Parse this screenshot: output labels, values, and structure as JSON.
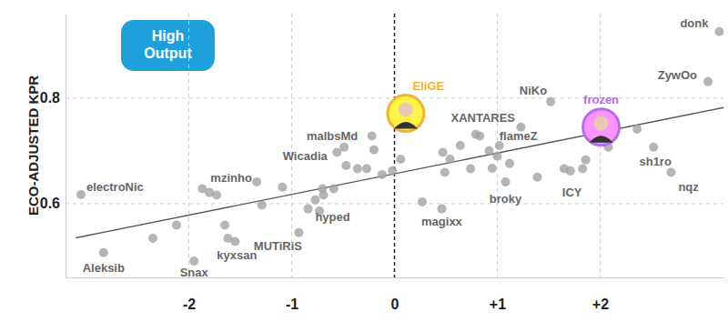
{
  "chart_data": {
    "type": "scatter",
    "y_label": "ECO-ADJUSTED KPR",
    "annotation": "High Output",
    "x": [
      3.16,
      3.05,
      1.52,
      2.01,
      0.11,
      0.79,
      1.02,
      2.52,
      2.69,
      1.71,
      1.08,
      0.46,
      -0.69,
      -0.93,
      -1.55,
      -1.95,
      -2.83,
      -3.05,
      -1.34,
      -0.56,
      -0.49,
      -1.87,
      -1.8,
      -1.73,
      -2.12,
      -2.35,
      -1.65,
      -1.62,
      -1.29,
      -1.09,
      -0.84,
      -0.77,
      -0.7,
      -0.59,
      -0.73,
      -0.47,
      -0.36,
      -0.27,
      -0.2,
      -0.12,
      -0.02,
      0.06,
      -0.22,
      0.47,
      0.49,
      0.54,
      0.64,
      0.74,
      0.83,
      0.92,
      0.95,
      1.0,
      1.12,
      1.23,
      1.39,
      1.65,
      1.83,
      1.86,
      2.08,
      2.36,
      0.27
    ],
    "values": [
      0.926,
      0.831,
      0.793,
      0.745,
      0.771,
      0.731,
      0.71,
      0.707,
      0.659,
      0.662,
      0.641,
      0.59,
      0.616,
      0.545,
      0.528,
      0.491,
      0.507,
      0.617,
      0.641,
      0.697,
      0.707,
      0.628,
      0.621,
      0.616,
      0.559,
      0.534,
      0.559,
      0.534,
      0.597,
      0.631,
      0.59,
      0.607,
      0.628,
      0.628,
      0.586,
      0.672,
      0.666,
      0.666,
      0.702,
      0.655,
      0.662,
      0.684,
      0.728,
      0.697,
      0.659,
      0.684,
      0.71,
      0.666,
      0.728,
      0.7,
      0.667,
      0.69,
      0.676,
      0.745,
      0.65,
      0.666,
      0.666,
      0.683,
      0.707,
      0.741,
      0.603
    ],
    "labels": [
      "donk",
      "ZywOo",
      "NiKo",
      "frozen",
      "EliGE",
      "XANTARES",
      "flameZ",
      "sh1ro",
      "nqz",
      "ICY",
      "broky",
      "magixx",
      "hyped",
      "MUTiRiS",
      "kyxsan",
      "Snax",
      "Aleksib",
      "electroNic",
      "mzinho",
      "Wicadia",
      "malbsMd",
      null,
      null,
      null,
      null,
      null,
      null,
      null,
      null,
      null,
      null,
      null,
      null,
      null,
      null,
      null,
      null,
      null,
      null,
      null,
      null,
      null,
      null,
      null,
      null,
      null,
      null,
      null,
      null,
      null,
      null,
      null,
      null,
      null,
      null,
      null,
      null,
      null,
      null,
      null,
      null
    ],
    "colors": [
      "#a3a3a3",
      "#a3a3a3",
      "#a3a3a3",
      "#b56cf0",
      "#f2b233",
      "#a3a3a3",
      "#a3a3a3",
      "#a3a3a3",
      "#a3a3a3",
      "#a3a3a3",
      "#a3a3a3",
      "#a3a3a3",
      "#a3a3a3",
      "#a3a3a3",
      "#a3a3a3",
      "#a3a3a3",
      "#a3a3a3",
      "#a3a3a3",
      "#a3a3a3",
      "#a3a3a3",
      "#a3a3a3",
      "#a3a3a3",
      "#a3a3a3",
      "#a3a3a3",
      "#a3a3a3",
      "#a3a3a3",
      "#a3a3a3",
      "#a3a3a3",
      "#a3a3a3",
      "#a3a3a3",
      "#a3a3a3",
      "#a3a3a3",
      "#a3a3a3",
      "#a3a3a3",
      "#a3a3a3",
      "#a3a3a3",
      "#a3a3a3",
      "#a3a3a3",
      "#a3a3a3",
      "#a3a3a3",
      "#a3a3a3",
      "#a3a3a3",
      "#a3a3a3",
      "#a3a3a3",
      "#a3a3a3",
      "#a3a3a3",
      "#a3a3a3",
      "#a3a3a3",
      "#a3a3a3",
      "#a3a3a3",
      "#a3a3a3",
      "#a3a3a3",
      "#a3a3a3",
      "#a3a3a3",
      "#a3a3a3",
      "#a3a3a3",
      "#a3a3a3",
      "#a3a3a3",
      "#a3a3a3",
      "#a3a3a3",
      "#a3a3a3"
    ],
    "trend_line": {
      "x": [
        -3.1,
        3.2
      ],
      "values": [
        0.535,
        0.782
      ]
    },
    "xlim": [
      -3.2,
      3.2
    ],
    "xticks": [
      -2,
      -1,
      0,
      {
        "value": 1,
        "label": "+1"
      },
      {
        "value": 2,
        "label": "+2"
      }
    ],
    "ylim": [
      0.46,
      0.96
    ],
    "yticks": [
      0.6,
      0.8
    ],
    "grid": true
  }
}
